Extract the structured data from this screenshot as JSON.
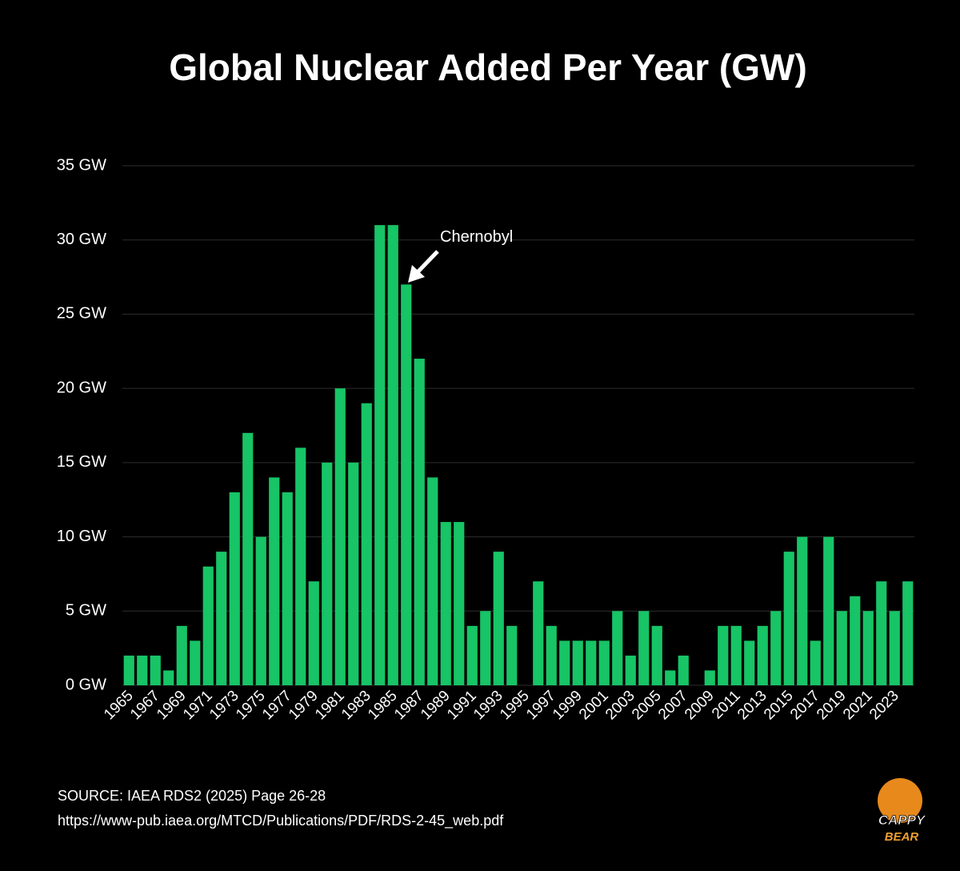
{
  "chart_data": {
    "type": "bar",
    "title": "Global Nuclear Added Per Year (GW)",
    "categories": [
      "1965",
      null,
      "1967",
      null,
      "1969",
      null,
      "1971",
      null,
      "1973",
      null,
      "1975",
      null,
      "1977",
      null,
      "1979",
      null,
      "1981",
      null,
      "1983",
      null,
      "1985",
      null,
      "1987",
      null,
      "1989",
      null,
      "1991",
      null,
      "1993",
      null,
      "1995",
      null,
      "1997",
      null,
      "1999",
      null,
      "2001",
      null,
      "2003",
      null,
      "2005",
      null,
      "2007",
      null,
      "2009",
      null,
      "2011",
      null,
      "2013",
      null,
      "2015",
      null,
      "2017",
      null,
      "2019",
      null,
      "2021",
      null,
      "2023",
      null
    ],
    "values": [
      2,
      2,
      2,
      1,
      4,
      3,
      8,
      9,
      13,
      17,
      10,
      14,
      13,
      16,
      7,
      15,
      20,
      15,
      19,
      31,
      31,
      27,
      22,
      14,
      11,
      11,
      4,
      5,
      9,
      4,
      0,
      7,
      4,
      3,
      3,
      3,
      3,
      5,
      2,
      5,
      4,
      1,
      2,
      0,
      1,
      4,
      4,
      3,
      4,
      5,
      9,
      10,
      3,
      10,
      5,
      6,
      5,
      7,
      5,
      7
    ],
    "color": "#17c466",
    "ylim": [
      0,
      35
    ],
    "yticks": [
      {
        "value": 0,
        "label": "0 GW"
      },
      {
        "value": 5,
        "label": "5 GW"
      },
      {
        "value": 10,
        "label": "10 GW"
      },
      {
        "value": 15,
        "label": "15 GW"
      },
      {
        "value": 20,
        "label": "20 GW"
      },
      {
        "value": 25,
        "label": "25 GW"
      },
      {
        "value": 30,
        "label": "30 GW"
      },
      {
        "value": 35,
        "label": "35 GW"
      }
    ],
    "grid": true,
    "annotation": "Chernobyl",
    "source": [
      "SOURCE: IAEA RDS2 (2025) Page 26-28",
      "https://www-pub.iaea.org/MTCD/Publications/PDF/RDS-2-45_web.pdf"
    ]
  },
  "logo": [
    "CAPPY",
    "BEAR"
  ]
}
